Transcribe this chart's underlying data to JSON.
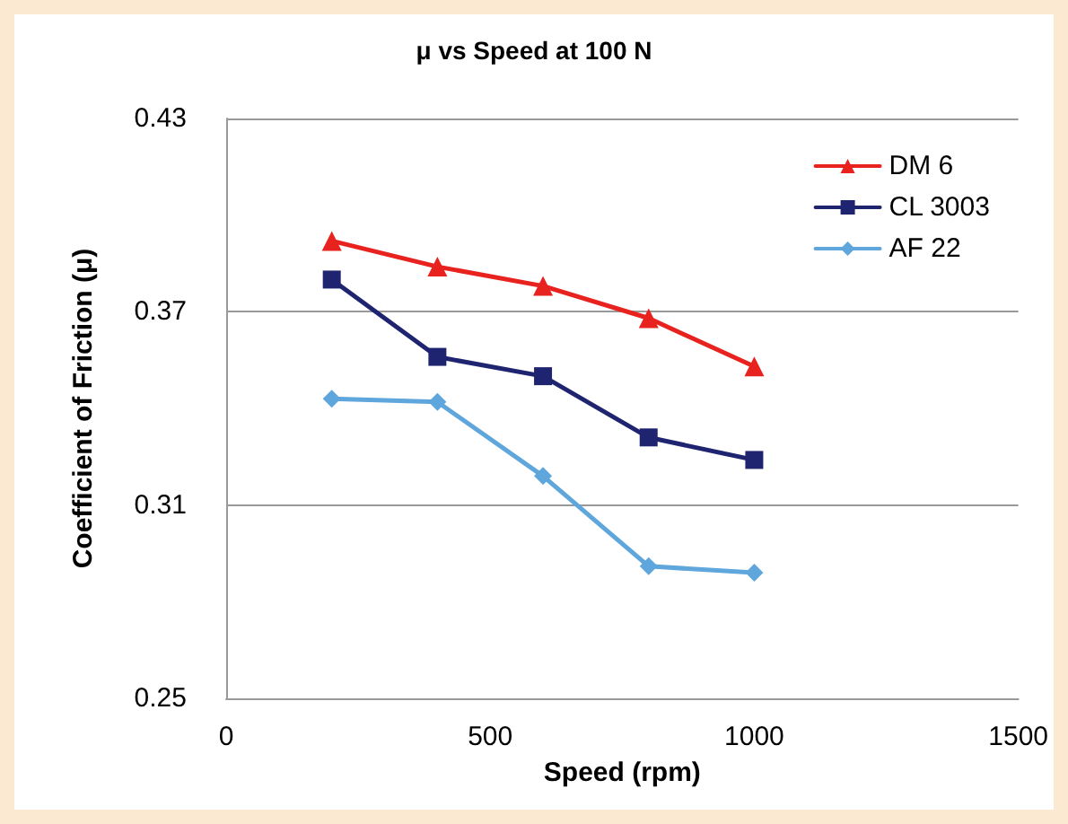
{
  "chart_data": {
    "type": "line",
    "title": "μ vs Speed at 100 N",
    "xlabel": "Speed (rpm)",
    "ylabel": "Coefficient of Friction (μ)",
    "x": [
      200,
      400,
      600,
      800,
      1000
    ],
    "series": [
      {
        "name": "DM 6",
        "color": "#e8231f",
        "values": [
          0.392,
          0.384,
          0.378,
          0.368,
          0.353
        ],
        "marker": "triangle"
      },
      {
        "name": "CL 3003",
        "color": "#1f2470",
        "values": [
          0.38,
          0.356,
          0.35,
          0.331,
          0.324
        ],
        "marker": "square"
      },
      {
        "name": "AF 22",
        "color": "#5ea6dc",
        "values": [
          0.343,
          0.342,
          0.319,
          0.291,
          0.289
        ],
        "marker": "diamond"
      }
    ],
    "xlim": [
      0,
      1500
    ],
    "xticks": [
      0,
      500,
      1000,
      1500
    ],
    "ylim": [
      0.25,
      0.43
    ],
    "yticks": [
      0.25,
      0.31,
      0.37,
      0.43
    ],
    "grid": "y",
    "legend": "top right",
    "line_style": "solid"
  }
}
